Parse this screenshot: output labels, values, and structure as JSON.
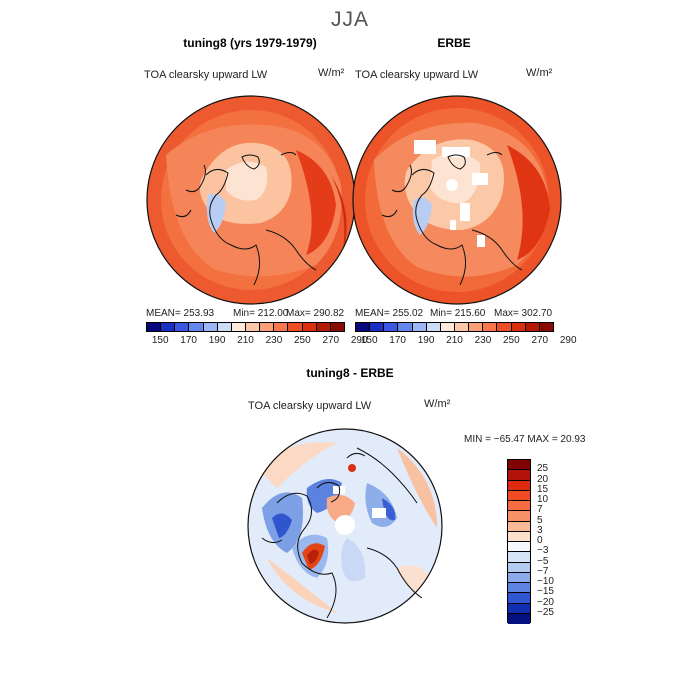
{
  "season": "JJA",
  "panels": [
    {
      "title": "tuning8 (yrs 1979-1979)",
      "variable": "TOA clearsky upward LW",
      "units": "W/m²",
      "mean": "MEAN= 253.93",
      "min": "Min= 212.00",
      "max": "Max= 290.82"
    },
    {
      "title": "ERBE",
      "variable": "TOA clearsky upward LW",
      "units": "W/m²",
      "mean": "MEAN= 255.02",
      "min": "Min= 215.60",
      "max": "Max= 302.70"
    }
  ],
  "diff": {
    "title": "tuning8 - ERBE",
    "variable": "TOA clearsky upward LW",
    "units": "W/m²",
    "range": "MIN = −65.47 MAX =  20.93"
  },
  "abs_colorbar": {
    "ticks": [
      "150",
      "170",
      "190",
      "210",
      "230",
      "250",
      "270",
      "290"
    ],
    "colors": [
      "#08087a",
      "#1a2fc4",
      "#3b59e0",
      "#6487ec",
      "#9bb8f4",
      "#cddcf6",
      "#ffe9dc",
      "#fcc7a6",
      "#f9a07a",
      "#f6774e",
      "#ee4e27",
      "#d9300f",
      "#b31b06",
      "#8a0a05"
    ]
  },
  "diff_colorbar": {
    "labels": [
      "25",
      "20",
      "15",
      "10",
      "7",
      "5",
      "3",
      "0",
      "−3",
      "−5",
      "−7",
      "−10",
      "−15",
      "−20",
      "−25"
    ],
    "colors": [
      "#7f0303",
      "#b11309",
      "#dd2a10",
      "#f24a22",
      "#f66c42",
      "#f99168",
      "#fbb894",
      "#fde0cc",
      "#f5f8fd",
      "#d6e3f7",
      "#b3cbf1",
      "#8baae9",
      "#5d84e0",
      "#2f57d2",
      "#0f2fb0",
      "#04107e"
    ]
  }
}
